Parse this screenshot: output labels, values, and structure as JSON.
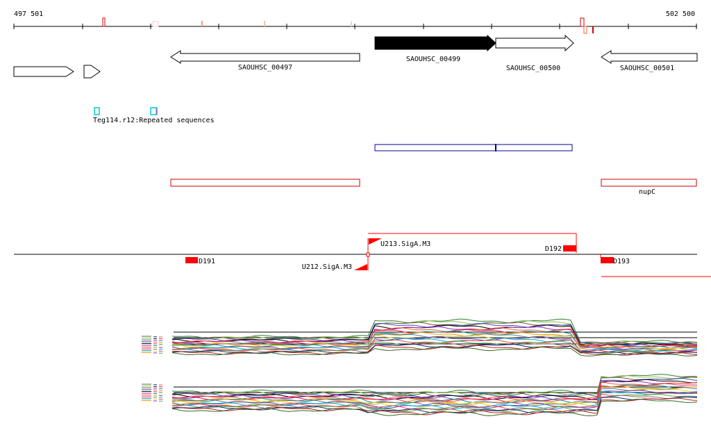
{
  "ruler": {
    "start_label": "497 501",
    "end_label": "502 500"
  },
  "genes": [
    {
      "label": "",
      "strand": "+",
      "style": "outline"
    },
    {
      "label": "",
      "strand": "+",
      "style": "outline"
    },
    {
      "label": "SAOUHSC_00497",
      "strand": "-",
      "style": "outline"
    },
    {
      "label": "SAOUHSC_00499",
      "strand": "+",
      "style": "filled"
    },
    {
      "label": "SAOUHSC_00500",
      "strand": "+",
      "style": "outline"
    },
    {
      "label": "SAOUHSC_00501",
      "strand": "-",
      "style": "outline"
    }
  ],
  "repeat_track": {
    "label": "Teg114.r12:Repeated sequences"
  },
  "operon_track": {
    "label": ""
  },
  "annotation_track": {
    "label": "nupC"
  },
  "feature_labels": {
    "d191": "D191",
    "d192": "D192",
    "d193": "D193",
    "u212": "U212.SigA.M3",
    "u213": "U213.SigA.M3"
  },
  "colors": {
    "ruler": "#000000",
    "gene_fill": "#000000",
    "repeat": "#00cccc",
    "operon": "#000099",
    "annotation": "#cc0000",
    "feature": "#ff0000",
    "expression_series": [
      "#2e7d32",
      "#8bc34a",
      "#795548",
      "#3f51b5",
      "#000000",
      "#9c27b0",
      "#ff5722",
      "#e91e63",
      "#009688",
      "#ff9800",
      "#607d8b",
      "#cddc39",
      "#673ab7",
      "#03a9f4",
      "#f44336",
      "#4caf50",
      "#8d6e63",
      "#1a237e",
      "#b71c1c",
      "#33691e"
    ]
  }
}
